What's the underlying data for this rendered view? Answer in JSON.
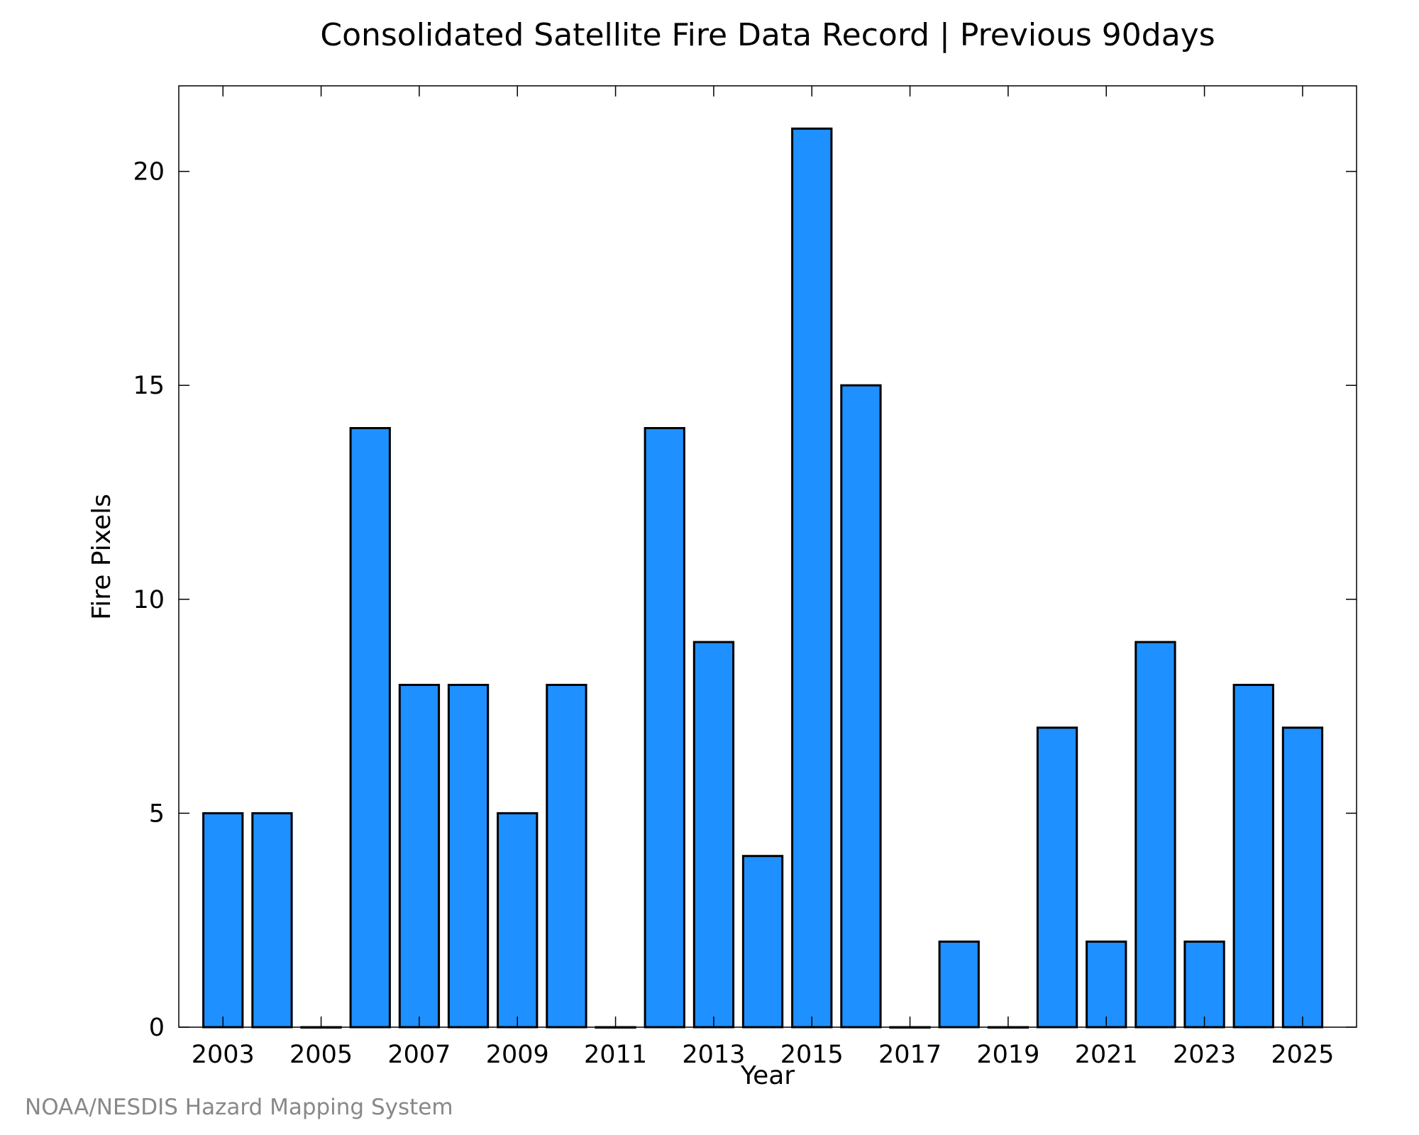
{
  "chart_data": {
    "type": "bar",
    "title": "Consolidated Satellite Fire Data Record | Previous 90days",
    "xlabel": "Year",
    "ylabel": "Fire Pixels",
    "categories": [
      "2003",
      "2004",
      "2005",
      "2006",
      "2007",
      "2008",
      "2009",
      "2010",
      "2011",
      "2012",
      "2013",
      "2014",
      "2015",
      "2016",
      "2017",
      "2018",
      "2019",
      "2020",
      "2021",
      "2022",
      "2023",
      "2024",
      "2025"
    ],
    "values": [
      5,
      5,
      0,
      14,
      8,
      8,
      5,
      8,
      0,
      14,
      9,
      4,
      21,
      15,
      0,
      2,
      0,
      7,
      2,
      9,
      2,
      8,
      7
    ],
    "x_tick_labels": [
      "2003",
      "2005",
      "2007",
      "2009",
      "2011",
      "2013",
      "2015",
      "2017",
      "2019",
      "2021",
      "2023",
      "2025"
    ],
    "y_ticks": [
      0,
      5,
      10,
      15,
      20
    ],
    "y_tick_labels": [
      "0",
      "5",
      "10",
      "15",
      "20"
    ],
    "ylim": [
      0,
      22
    ],
    "xlim": [
      2002.1,
      2026.1
    ],
    "grid": false,
    "bar_color": "#1e90ff",
    "bar_edge_color": "#000000"
  },
  "credit": "NOAA/NESDIS Hazard Mapping System"
}
